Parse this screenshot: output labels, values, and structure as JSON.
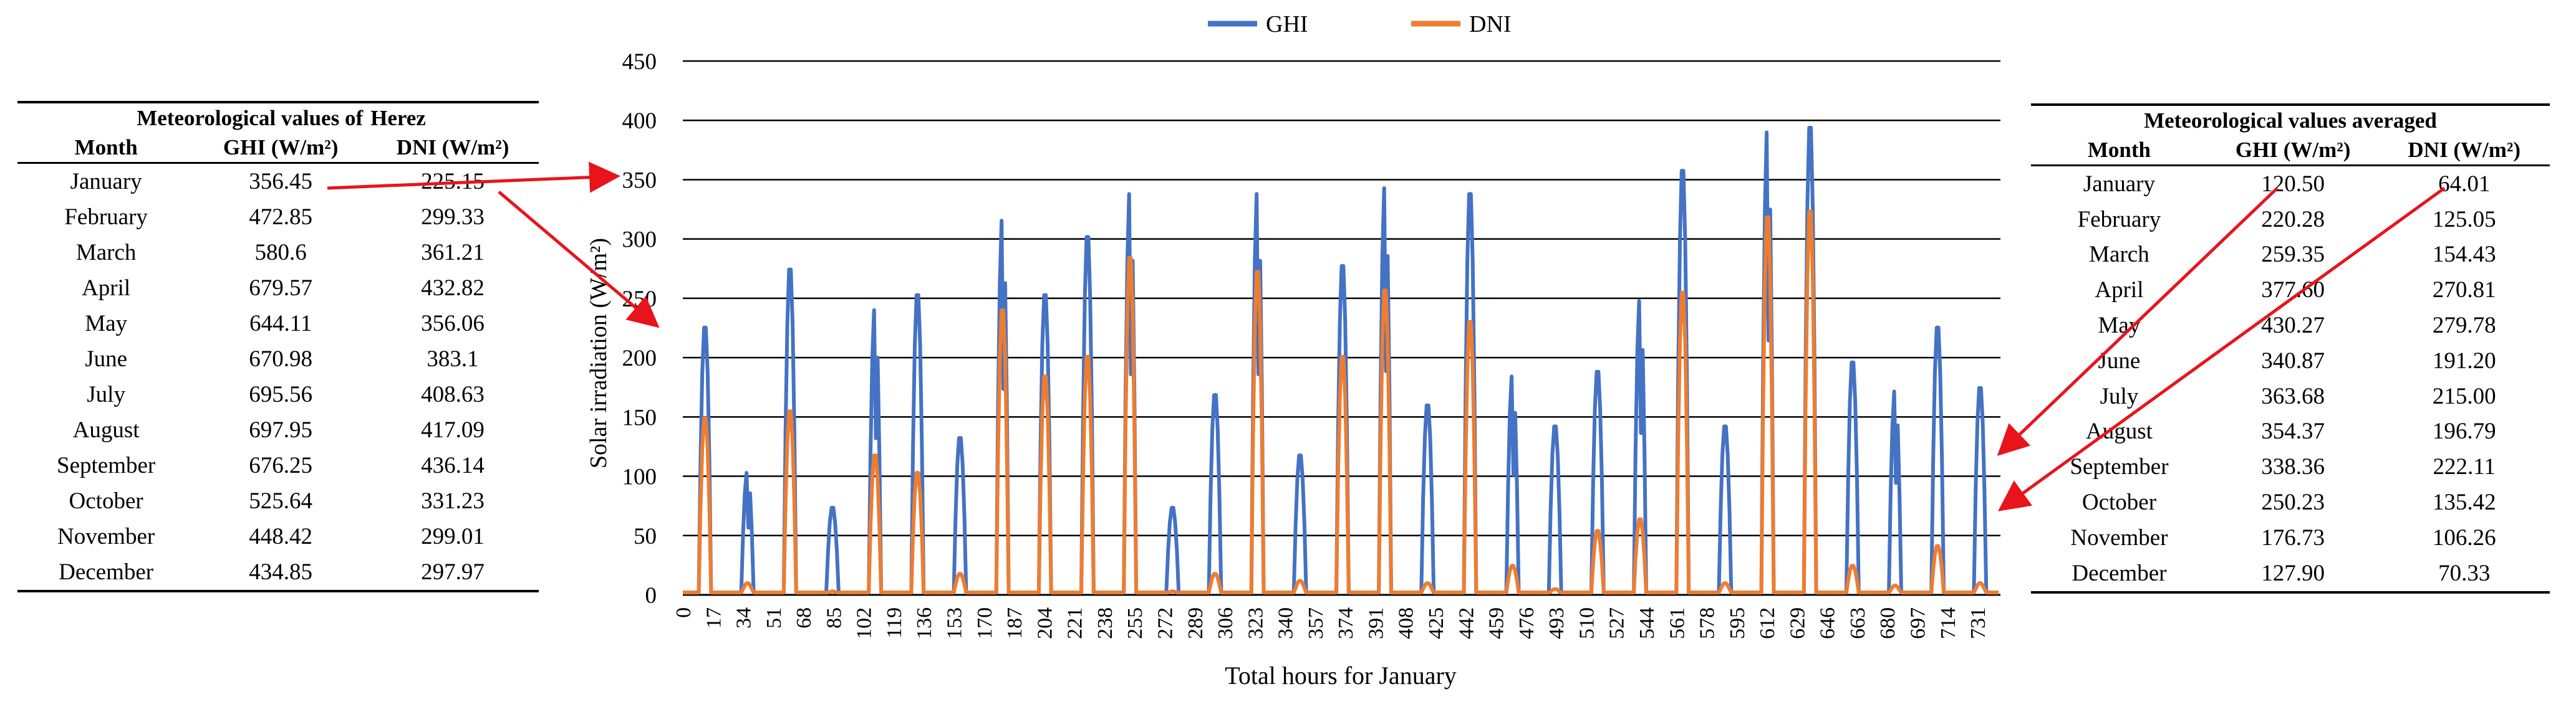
{
  "left_table": {
    "title_a": "Meteorological values of",
    "title_b": "Herez",
    "columns": [
      "Month",
      "GHI (W/m²)",
      "DNI (W/m²)"
    ],
    "rows": [
      [
        "January",
        "356.45",
        "225.15"
      ],
      [
        "February",
        "472.85",
        "299.33"
      ],
      [
        "March",
        "580.6",
        "361.21"
      ],
      [
        "April",
        "679.57",
        "432.82"
      ],
      [
        "May",
        "644.11",
        "356.06"
      ],
      [
        "June",
        "670.98",
        "383.1"
      ],
      [
        "July",
        "695.56",
        "408.63"
      ],
      [
        "August",
        "697.95",
        "417.09"
      ],
      [
        "September",
        "676.25",
        "436.14"
      ],
      [
        "October",
        "525.64",
        "331.23"
      ],
      [
        "November",
        "448.42",
        "299.01"
      ],
      [
        "December",
        "434.85",
        "297.97"
      ]
    ]
  },
  "right_table": {
    "title": "Meteorological values averaged",
    "columns": [
      "Month",
      "GHI (W/m²)",
      "DNI (W/m²)"
    ],
    "rows": [
      [
        "January",
        "120.50",
        "64.01"
      ],
      [
        "February",
        "220.28",
        "125.05"
      ],
      [
        "March",
        "259.35",
        "154.43"
      ],
      [
        "April",
        "377.60",
        "270.81"
      ],
      [
        "May",
        "430.27",
        "279.78"
      ],
      [
        "June",
        "340.87",
        "191.20"
      ],
      [
        "July",
        "363.68",
        "215.00"
      ],
      [
        "August",
        "354.37",
        "196.79"
      ],
      [
        "September",
        "338.36",
        "222.11"
      ],
      [
        "October",
        "250.23",
        "135.42"
      ],
      [
        "November",
        "176.73",
        "106.26"
      ],
      [
        "December",
        "127.90",
        "70.33"
      ]
    ]
  },
  "colors": {
    "ghi": "#4472C4",
    "dni": "#ED7D31",
    "arrow": "#E8141B",
    "grid": "#000000"
  },
  "chart_data": {
    "type": "line",
    "xlabel": "Total hours for January",
    "ylabel": "Solar irradiation (W/m²)",
    "ylim": [
      0,
      450
    ],
    "yticks": [
      0,
      50,
      100,
      150,
      200,
      250,
      300,
      350,
      400,
      450
    ],
    "xlim": [
      0,
      744
    ],
    "xticks": [
      0,
      17,
      34,
      51,
      68,
      85,
      102,
      119,
      136,
      153,
      170,
      187,
      204,
      221,
      238,
      255,
      272,
      289,
      306,
      323,
      340,
      357,
      374,
      391,
      408,
      425,
      442,
      459,
      476,
      493,
      510,
      527,
      544,
      561,
      578,
      595,
      612,
      629,
      646,
      663,
      680,
      697,
      714,
      731
    ],
    "legend_position": "top",
    "grid": true,
    "series": [
      {
        "name": "GHI",
        "color": "#4472C4",
        "daily_peaks": [
          230,
          105,
          280,
          75,
          245,
          258,
          135,
          322,
          258,
          308,
          345,
          75,
          172,
          345,
          120,
          283,
          350,
          163,
          345,
          188,
          145,
          192,
          253,
          365,
          145,
          398,
          402,
          200,
          175,
          230,
          178
        ]
      },
      {
        "name": "DNI",
        "color": "#ED7D31",
        "daily_peaks": [
          152,
          10,
          158,
          3,
          120,
          105,
          18,
          245,
          188,
          205,
          290,
          3,
          18,
          278,
          12,
          205,
          262,
          10,
          235,
          25,
          5,
          55,
          65,
          260,
          10,
          325,
          330,
          25,
          8,
          42,
          10
        ]
      }
    ]
  }
}
